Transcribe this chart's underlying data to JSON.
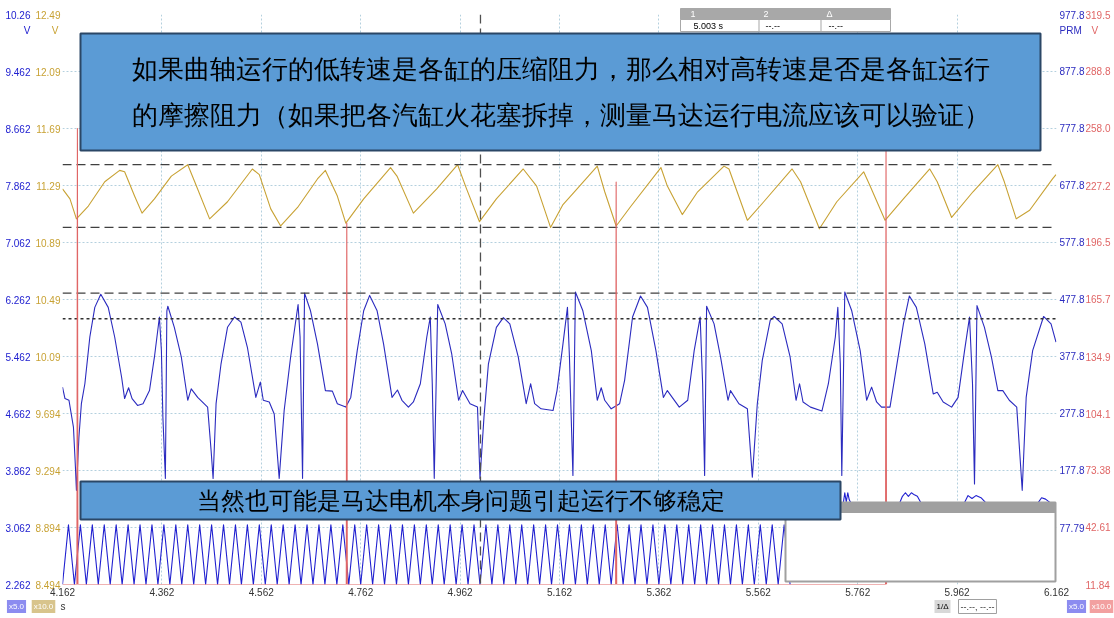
{
  "chart_data": [
    {
      "type": "line",
      "xlabel": "s",
      "ylabel": "V",
      "y2label": "V",
      "y3label": "PRM",
      "xlim": [
        4.162,
        6.162
      ],
      "xticks": [
        4.162,
        4.362,
        4.562,
        4.762,
        4.962,
        5.162,
        5.362,
        5.562,
        5.762,
        5.962,
        6.162
      ],
      "ylim": [
        8.494,
        12.494
      ],
      "yticks": [
        8.494,
        8.894,
        9.294,
        9.694,
        {
          "value": 10.094,
          "label": "10.09"
        },
        {
          "value": 10.494,
          "label": "10.49"
        },
        {
          "value": 10.894,
          "label": "10.89"
        },
        {
          "value": 11.294,
          "label": "11.29"
        },
        {
          "value": 11.694,
          "label": "11.69"
        },
        {
          "value": 12.094,
          "label": "12.09"
        },
        {
          "value": 12.494,
          "label": "12.49"
        }
      ],
      "y2lim": [
        2.262,
        10.262
      ],
      "y2ticks": [
        2.262,
        3.062,
        3.862,
        4.662,
        5.462,
        6.262,
        7.062,
        7.862,
        8.662,
        9.462,
        {
          "value": 10.262,
          "label": "10.26"
        }
      ],
      "y3lim": [
        -22.21,
        977.8
      ],
      "y3ticks": [
        77.79,
        177.8,
        277.8,
        377.8,
        477.8,
        577.8,
        677.8,
        777.8,
        877.8,
        977.8
      ],
      "grid": true,
      "series": [
        {
          "color": "#2020d0",
          "axis": "y2",
          "x": [
            4.162,
            4.174,
            4.186,
            4.198,
            4.21,
            4.222,
            4.234,
            4.246,
            4.258,
            4.27,
            4.282,
            4.294,
            4.306,
            4.318,
            4.33,
            4.342,
            4.354,
            4.366,
            4.378,
            4.39,
            4.402,
            4.414,
            4.426,
            4.438,
            4.45,
            4.462,
            4.474,
            4.486,
            4.498,
            4.51,
            4.522,
            4.534,
            4.546,
            4.558,
            4.57,
            4.582,
            4.594,
            4.606,
            4.618,
            4.63,
            4.642,
            4.654,
            4.666,
            4.678,
            4.69,
            4.702,
            4.714,
            4.726,
            4.738,
            4.75,
            4.762,
            4.774,
            4.786,
            4.798,
            4.81,
            4.822,
            4.834,
            4.846,
            4.858,
            4.87,
            4.882,
            4.894,
            4.906,
            4.918,
            4.93,
            4.942,
            4.954,
            4.966,
            4.978,
            4.99,
            5.002,
            5.014,
            5.026,
            5.038,
            5.05,
            5.062,
            5.074,
            5.086,
            5.098,
            5.11,
            5.122,
            5.134,
            5.146,
            5.158,
            5.17,
            5.182,
            5.194,
            5.206,
            5.218,
            5.23,
            5.242,
            5.254,
            5.266,
            5.278,
            5.29,
            5.302,
            5.314,
            5.326,
            5.338,
            5.35,
            5.362,
            5.374,
            5.386,
            5.398,
            5.41,
            5.422,
            5.434,
            5.446,
            5.458,
            5.47,
            5.482,
            5.494,
            5.506,
            5.518,
            5.53,
            5.542,
            5.554,
            5.566,
            5.578,
            5.59,
            5.602,
            5.614,
            5.626
          ],
          "values": [
            2.262,
            3.1,
            2.262,
            3.1,
            2.262,
            3.1,
            2.262,
            3.1,
            2.262,
            3.1,
            2.262,
            3.1,
            2.262,
            3.1,
            2.262,
            3.1,
            2.262,
            3.1,
            2.262,
            3.1,
            2.262,
            3.1,
            2.262,
            3.1,
            2.262,
            3.1,
            2.262,
            3.1,
            2.262,
            3.1,
            2.262,
            3.1,
            2.262,
            3.1,
            2.262,
            3.1,
            2.262,
            3.1,
            2.262,
            3.1,
            2.262,
            3.1,
            2.262,
            3.1,
            2.262,
            3.1,
            2.262,
            3.1,
            2.262,
            3.1,
            2.262,
            3.1,
            2.262,
            3.1,
            2.262,
            3.1,
            2.262,
            3.1,
            2.262,
            3.1,
            2.262,
            3.1,
            2.262,
            3.1,
            2.262,
            3.1,
            2.262,
            3.1,
            2.262,
            3.1,
            2.262,
            3.1,
            2.262,
            3.1,
            2.262,
            3.1,
            2.262,
            3.1,
            2.262,
            3.1,
            2.262,
            3.1,
            2.262,
            3.1,
            2.262,
            3.1,
            2.262,
            3.1,
            2.262,
            3.1,
            2.262,
            3.1,
            2.262,
            3.1,
            2.262,
            3.1,
            2.262,
            3.1,
            2.262,
            3.1,
            2.262,
            3.1,
            2.262,
            3.1,
            2.262,
            3.1,
            2.262,
            3.1,
            2.262,
            3.1,
            2.262,
            3.1,
            2.262,
            3.1,
            2.262,
            3.1,
            2.262,
            3.1,
            2.262,
            3.1,
            2.262,
            3.1,
            2.262
          ]
        },
        {
          "color": "#2020d0",
          "axis": "y2",
          "x": [
            5.733,
            5.736,
            5.739,
            5.742,
            5.745,
            5.749
          ],
          "values": [
            3.4,
            3.55,
            3.42,
            3.55,
            3.45,
            3.4
          ]
        },
        {
          "color": "#2020d0",
          "axis": "y2",
          "x": [
            5.846,
            5.852,
            5.858,
            5.864,
            5.87,
            5.876,
            5.882,
            5.89
          ],
          "values": [
            3.4,
            3.5,
            3.55,
            3.5,
            3.55,
            3.52,
            3.5,
            3.4
          ]
        },
        {
          "color": "#2020d0",
          "axis": "y2",
          "x": [
            5.976,
            5.984,
            5.992,
            6.0,
            6.01,
            6.021
          ],
          "values": [
            3.4,
            3.51,
            3.47,
            3.51,
            3.48,
            3.4
          ]
        },
        {
          "color": "#2020d0",
          "axis": "y2",
          "x": [
            6.124,
            6.132,
            6.14,
            6.151
          ],
          "values": [
            3.4,
            3.48,
            3.46,
            3.4
          ]
        },
        {
          "color": "#c8a234",
          "x": [
            4.162,
            4.177,
            4.19,
            4.214,
            4.247,
            4.277,
            4.287,
            4.307,
            4.322,
            4.347,
            4.381,
            4.414,
            4.428,
            4.458,
            4.494,
            4.544,
            4.558,
            4.581,
            4.601,
            4.635,
            4.675,
            4.691,
            4.715,
            4.732,
            4.768,
            4.822,
            4.835,
            4.868,
            4.915,
            4.957,
            4.975,
            5.001,
            5.035,
            5.089,
            5.116,
            5.144,
            5.169,
            5.192,
            5.238,
            5.253,
            5.276,
            5.306,
            5.366,
            5.379,
            5.409,
            5.44,
            5.493,
            5.503,
            5.54,
            5.573,
            5.63,
            5.647,
            5.685,
            5.72,
            5.774,
            5.787,
            5.817,
            5.854,
            5.907,
            5.922,
            5.951,
            5.994,
            6.044,
            6.057,
            6.081,
            6.108,
            6.154,
            6.161
          ],
          "values": [
            11.27,
            11.2,
            11.06,
            11.15,
            11.32,
            11.4,
            11.39,
            11.22,
            11.1,
            11.2,
            11.36,
            11.44,
            11.32,
            11.06,
            11.18,
            11.41,
            11.37,
            11.13,
            11.01,
            11.14,
            11.34,
            11.4,
            11.22,
            11.03,
            11.2,
            11.42,
            11.36,
            11.1,
            11.27,
            11.44,
            11.27,
            11.04,
            11.2,
            11.41,
            11.29,
            11.0,
            11.16,
            11.25,
            11.43,
            11.25,
            11.01,
            11.15,
            11.42,
            11.29,
            11.09,
            11.25,
            11.43,
            11.41,
            11.05,
            11.18,
            11.41,
            11.32,
            10.99,
            11.18,
            11.39,
            11.29,
            11.05,
            11.2,
            11.41,
            11.32,
            11.07,
            11.25,
            11.44,
            11.32,
            11.06,
            11.12,
            11.34,
            11.37
          ]
        },
        {
          "color": "#2b2bbf",
          "axis": "y3",
          "x": [
            4.162,
            4.167,
            4.175,
            4.184,
            4.188,
            4.19,
            4.195,
            4.2,
            4.207,
            4.217,
            4.227,
            4.239,
            4.254,
            4.267,
            4.281,
            4.287,
            4.295,
            4.302,
            4.313,
            4.324,
            4.337,
            4.347,
            4.357,
            4.361,
            4.364,
            4.369,
            4.372,
            4.374,
            4.387,
            4.401,
            4.414,
            4.421,
            4.434,
            4.454,
            4.461,
            4.465,
            4.471,
            4.481,
            4.494,
            4.508,
            4.521,
            4.534,
            4.551,
            4.56,
            4.566,
            4.578,
            4.588,
            4.598,
            4.608,
            4.621,
            4.636,
            4.64,
            4.645,
            4.649,
            4.661,
            4.675,
            4.691,
            4.705,
            4.715,
            4.732,
            4.742,
            4.755,
            4.768,
            4.78,
            4.795,
            4.808,
            4.825,
            4.836,
            4.845,
            4.858,
            4.868,
            4.882,
            4.895,
            4.902,
            4.906,
            4.91,
            4.917,
            4.932,
            4.945,
            4.959,
            4.967,
            4.982,
            4.997,
            5.002,
            5.01,
            5.019,
            5.035,
            5.049,
            5.062,
            5.079,
            5.095,
            5.104,
            5.112,
            5.125,
            5.149,
            5.157,
            5.169,
            5.178,
            5.182,
            5.189,
            5.194,
            5.209,
            5.226,
            5.238,
            5.246,
            5.253,
            5.266,
            5.283,
            5.293,
            5.309,
            5.325,
            5.339,
            5.356,
            5.371,
            5.379,
            5.403,
            5.42,
            5.433,
            5.445,
            5.45,
            5.454,
            5.458,
            5.473,
            5.486,
            5.501,
            5.506,
            5.523,
            5.54,
            5.55,
            5.56,
            5.57,
            5.586,
            5.594,
            5.61,
            5.626,
            5.638,
            5.645,
            5.652,
            5.667,
            5.69,
            5.703,
            5.717,
            5.722,
            5.727,
            5.73,
            5.736,
            5.75,
            5.767,
            5.78,
            5.79,
            5.8,
            5.81,
            5.827,
            5.84,
            5.854,
            5.866,
            5.88,
            5.897,
            5.914,
            5.922,
            5.934,
            5.951,
            5.964,
            5.977,
            5.987,
            5.993,
            5.997,
            6.002,
            6.017,
            6.031,
            6.044,
            6.054,
            6.067,
            6.082,
            6.093,
            6.101,
            6.114,
            6.136,
            6.151,
            6.161
          ],
          "values": [
            324,
            304,
            301,
            254,
            184,
            143,
            236,
            295,
            330,
            412,
            464,
            487,
            464,
            412,
            341,
            304,
            323,
            304,
            292,
            295,
            318,
            377,
            447,
            388,
            271,
            164,
            458,
            466,
            429,
            377,
            301,
            321,
            306,
            289,
            213,
            164,
            295,
            365,
            429,
            447,
            438,
            394,
            306,
            333,
            301,
            298,
            277,
            164,
            283,
            377,
            469,
            412,
            164,
            489,
            458,
            400,
            318,
            317,
            295,
            289,
            306,
            388,
            458,
            485,
            458,
            400,
            306,
            319,
            301,
            289,
            298,
            330,
            412,
            447,
            330,
            164,
            469,
            435,
            383,
            301,
            318,
            295,
            289,
            164,
            271,
            365,
            429,
            446,
            435,
            377,
            295,
            330,
            295,
            286,
            283,
            318,
            400,
            464,
            377,
            169,
            491,
            458,
            388,
            301,
            323,
            301,
            286,
            295,
            336,
            447,
            484,
            464,
            388,
            306,
            318,
            289,
            301,
            388,
            447,
            330,
            169,
            466,
            435,
            377,
            301,
            318,
            295,
            286,
            166,
            295,
            371,
            441,
            448,
            435,
            377,
            301,
            330,
            298,
            289,
            282,
            330,
            412,
            464,
            365,
            169,
            491,
            458,
            388,
            301,
            324,
            298,
            289,
            289,
            359,
            435,
            484,
            464,
            400,
            312,
            315,
            298,
            289,
            306,
            388,
            447,
            330,
            154,
            467,
            429,
            377,
            318,
            318,
            301,
            289,
            143,
            306,
            388,
            448,
            435,
            403
          ]
        }
      ],
      "ref_lines": [
        {
          "axis": "x",
          "value": 5.003,
          "color": "#505050",
          "line_style": "dashed"
        },
        {
          "axis": "y",
          "value": 11.44,
          "color": "#404040",
          "line_style": "dashed"
        },
        {
          "axis": "y",
          "value": 11.0,
          "color": "#404040",
          "line_style": "dashed"
        },
        {
          "axis": "y3",
          "value": 489,
          "color": "#404040",
          "line_style": "dashed"
        },
        {
          "axis": "y3",
          "value": 444,
          "color": "#303030",
          "line_style": "dotted"
        }
      ],
      "annotations": [
        "如果曲轴运行的低转速是各缸的压缩阻力，那么相对高转速是否是各缸运行的摩擦阻力（如果把各汽缸火花塞拆掉，测量马达运行电流应该可以验证）",
        "当然也可能是马达电机本身问题引起运行不够稳定",
        "x5.0",
        "x10.0",
        "x5.0",
        "x10.0",
        "1/Δ",
        "--.--, --.--",
        "1",
        "2",
        "Δ",
        "5.003 s",
        "--.--",
        "--.--"
      ]
    },
    {
      "type": "line",
      "ylabel": "V",
      "xlim": [
        4.162,
        6.162
      ],
      "ylim": [
        11.84,
        319.5
      ],
      "yticks": [
        11.84,
        42.61,
        73.38,
        104.1,
        134.9,
        165.7,
        196.5,
        227.2,
        {
          "value": 258,
          "label": "258.0"
        },
        288.8,
        319.5
      ],
      "tick_labels": "y",
      "series": [
        {
          "color": "#e06666",
          "x": [
            4.162,
            4.191,
            4.192,
            4.193,
            4.733,
            4.734,
            4.735,
            5.275,
            5.276,
            5.277,
            5.818,
            5.819,
            5.82
          ],
          "values": [
            11.84,
            11.84,
            258,
            11.84,
            11.84,
            207,
            11.84,
            11.84,
            229,
            11.84,
            11.84,
            246,
            11.84
          ]
        }
      ]
    }
  ]
}
